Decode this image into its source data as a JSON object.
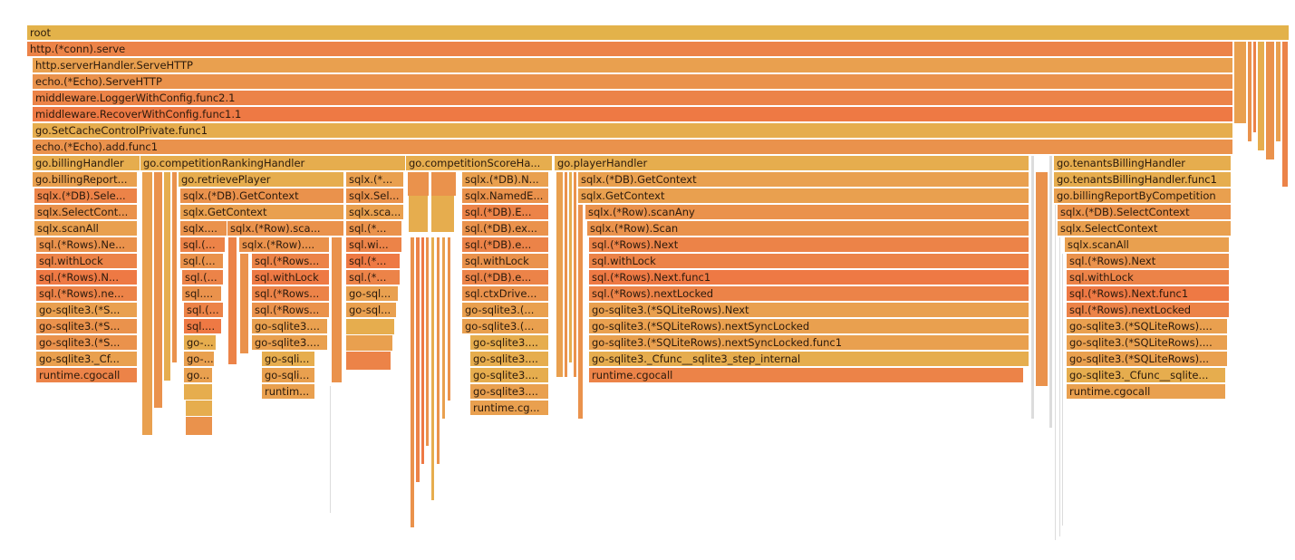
{
  "colors": {
    "root": "#e3b24a",
    "ochre": "#e6ad4e",
    "amber": "#e9a04f",
    "orange": "#ea924c",
    "deep": "#ec8348",
    "red": "#ee7944",
    "thin": "#dcdcdc"
  },
  "frames": {
    "root": "root",
    "serve": "http.(*conn).serve",
    "server_handler": "http.serverHandler.ServeHTTP",
    "echo_serve": "echo.(*Echo).ServeHTTP",
    "logger": "middleware.LoggerWithConfig.func2.1",
    "recover": "middleware.RecoverWithConfig.func1.1",
    "cache_control": "go.SetCacheControlPrivate.func1",
    "echo_add": "echo.(*Echo).add.func1",
    "billing": {
      "handler": "go.billingHandler",
      "report": "go.billingReport...",
      "db_select": "sqlx.(*DB).Sele...",
      "select_context": "sqlx.SelectCont...",
      "scan_all": "sqlx.scanAll",
      "rows_next": "sql.(*Rows).Ne...",
      "with_lock": "sql.withLock",
      "rows_next_func": "sql.(*Rows).N...",
      "rows_next_locked": "sql.(*Rows).ne...",
      "sqlite_1": "go-sqlite3.(*S...",
      "sqlite_2": "go-sqlite3.(*S...",
      "sqlite_3": "go-sqlite3.(*S...",
      "cfunc": "go-sqlite3._Cf...",
      "cgocall": "runtime.cgocall"
    },
    "ranking": {
      "handler": "go.competitionRankingHandler",
      "retrieve_player": "go.retrievePlayer",
      "db_get_context": "sqlx.(*DB).GetContext",
      "get_context": "sqlx.GetContext",
      "sql_a1": "sqlx....",
      "sql_a2": "sql.(...",
      "sql_a3": "sql.(...",
      "sql_a4": "sql.(...",
      "sql_a5": "sql....",
      "sql_a6": "sql.(...",
      "sql_a7": "sql....",
      "sql_a8": "go-...",
      "sql_a9": "go-...",
      "sql_a10": "go...",
      "row_scan_any": "sqlx.(*Row).sca...",
      "row_b": "sqlx.(*Row)....",
      "rows_b1": "sql.(*Rows...",
      "with_lock_b": "sql.withLock",
      "rows_b2": "sql.(*Rows...",
      "rows_b3": "sql.(*Rows...",
      "sqlite_b1": "go-sqlite3....",
      "sqlite_b2": "go-sqlite3....",
      "sqli_b3": "go-sqli...",
      "sqli_b4": "go-sqli...",
      "runtime_b": "runtim...",
      "sqlx_c1": "sqlx.(*...",
      "sqlx_c2": "sqlx.Sel...",
      "sqlx_c3": "sqlx.sca...",
      "sql_c4": "sql.(*...",
      "sql_c5": "sql.wi...",
      "sql_c6": "sql.(*...",
      "sql_c7": "sql.(*...",
      "gosql_c8": "go-sql...",
      "gosql_c9": "go-sql..."
    },
    "score": {
      "handler": "go.competitionScoreHa...",
      "db_n": "sqlx.(*DB).N...",
      "named_e": "sqlx.NamedE...",
      "db_e": "sql.(*DB).E...",
      "db_ex": "sql.(*DB).ex...",
      "db_e2": "sql.(*DB).e...",
      "with_lock": "sql.withLock",
      "db_e3": "sql.(*DB).e...",
      "ctx_driver": "sql.ctxDrive...",
      "sqlite_1": "go-sqlite3.(...",
      "sqlite_2": "go-sqlite3.(...",
      "sqlite_3": "go-sqlite3....",
      "sqlite_4": "go-sqlite3....",
      "sqlite_5": "go-sqlite3....",
      "sqlite_6": "go-sqlite3....",
      "cgocall": "runtime.cg..."
    },
    "player": {
      "handler": "go.playerHandler",
      "db_get_context": "sqlx.(*DB).GetContext",
      "get_context": "sqlx.GetContext",
      "row_scan_any": "sqlx.(*Row).scanAny",
      "row_scan": "sqlx.(*Row).Scan",
      "rows_next": "sql.(*Rows).Next",
      "with_lock": "sql.withLock",
      "rows_next_func": "sql.(*Rows).Next.func1",
      "rows_next_locked": "sql.(*Rows).nextLocked",
      "sqlite_next": "go-sqlite3.(*SQLiteRows).Next",
      "sqlite_next_sync": "go-sqlite3.(*SQLiteRows).nextSyncLocked",
      "sqlite_next_sync_func": "go-sqlite3.(*SQLiteRows).nextSyncLocked.func1",
      "cfunc_step": "go-sqlite3._Cfunc__sqlite3_step_internal",
      "cgocall": "runtime.cgocall"
    },
    "tenants": {
      "handler": "go.tenantsBillingHandler",
      "handler_func": "go.tenantsBillingHandler.func1",
      "report_by_competition": "go.billingReportByCompetition",
      "db_select_context": "sqlx.(*DB).SelectContext",
      "select_context": "sqlx.SelectContext",
      "scan_all": "sqlx.scanAll",
      "rows_next": "sql.(*Rows).Next",
      "with_lock": "sql.withLock",
      "rows_next_func": "sql.(*Rows).Next.func1",
      "rows_next_locked": "sql.(*Rows).nextLocked",
      "sqlite_1": "go-sqlite3.(*SQLiteRows)....",
      "sqlite_2": "go-sqlite3.(*SQLiteRows)....",
      "sqlite_3": "go-sqlite3.(*SQLiteRows)...",
      "cfunc": "go-sqlite3._Cfunc__sqlite...",
      "cgocall": "runtime.cgocall"
    }
  }
}
